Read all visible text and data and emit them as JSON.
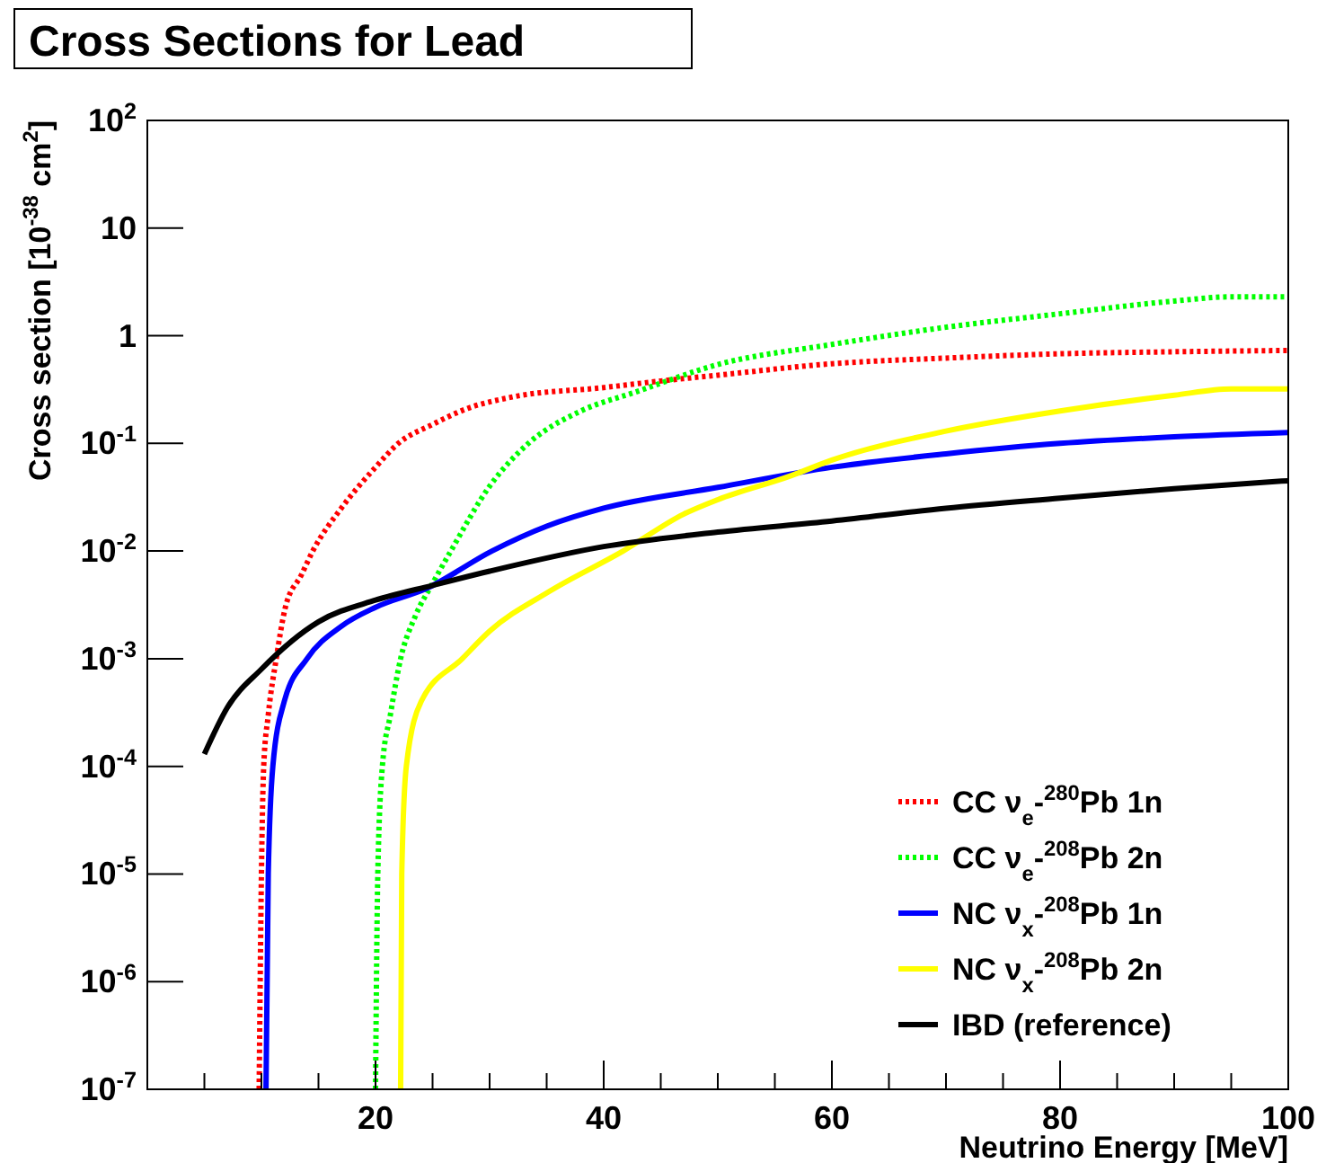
{
  "chart_data": {
    "type": "line",
    "title": "Cross Sections for Lead",
    "xlabel": "Neutrino Energy [MeV]",
    "ylabel": "Cross section [10$^{-38}$ cm$^{2}$]",
    "log": "y",
    "legend": "bottom right",
    "xlim": [
      0,
      100
    ],
    "ylim": [
      1e-07,
      100
    ],
    "xticks": [
      {
        "value": 5,
        "label": null
      },
      {
        "value": 10,
        "label": null
      },
      {
        "value": 15,
        "label": null
      },
      20,
      {
        "value": 25,
        "label": null
      },
      {
        "value": 30,
        "label": null
      },
      {
        "value": 35,
        "label": null
      },
      40,
      {
        "value": 45,
        "label": null
      },
      {
        "value": 50,
        "label": null
      },
      {
        "value": 55,
        "label": null
      },
      60,
      {
        "value": 65,
        "label": null
      },
      {
        "value": 70,
        "label": null
      },
      {
        "value": 75,
        "label": null
      },
      80,
      {
        "value": 85,
        "label": null
      },
      {
        "value": 90,
        "label": null
      },
      {
        "value": 95,
        "label": null
      },
      100
    ],
    "yticks": [
      {
        "value": 1e-07,
        "label": "10$^{-7}$"
      },
      {
        "value": 1e-06,
        "label": "10$^{-6}$"
      },
      {
        "value": 1e-05,
        "label": "10$^{-5}$"
      },
      {
        "value": 0.0001,
        "label": "10$^{-4}$"
      },
      {
        "value": 0.001,
        "label": "10$^{-3}$"
      },
      {
        "value": 0.01,
        "label": "10$^{-2}$"
      },
      {
        "value": 0.1,
        "label": "10$^{-1}$"
      },
      1,
      10,
      {
        "value": 100,
        "label": "10$^{2}$"
      }
    ],
    "series": [
      {
        "name": "CC ν$_{e}$-$^{280}$Pb 1n",
        "color": "#ff0000",
        "line_style": "dotted",
        "x": [
          9.8,
          10,
          10.2,
          10.6,
          11.3,
          12.1,
          13.5,
          14.5,
          17,
          20,
          22,
          25,
          28,
          32,
          40,
          45,
          50,
          60,
          70,
          80,
          90,
          100
        ],
        "values": [
          1e-07,
          1e-05,
          0.0001,
          0.0003,
          0.001,
          0.003,
          0.006,
          0.01,
          0.025,
          0.06,
          0.1,
          0.15,
          0.21,
          0.27,
          0.33,
          0.38,
          0.43,
          0.55,
          0.62,
          0.68,
          0.71,
          0.73
        ]
      },
      {
        "name": "CC ν$_{e}$-$^{208}$Pb 2n",
        "color": "#00ff00",
        "line_style": "dotted",
        "x": [
          20,
          20.2,
          20.6,
          21.3,
          22.2,
          23.5,
          25,
          26.6,
          30,
          33.4,
          38,
          42.8,
          50,
          60,
          70,
          80,
          90,
          95,
          100
        ],
        "values": [
          1e-07,
          1e-05,
          0.0001,
          0.0003,
          0.001,
          0.0025,
          0.005,
          0.01,
          0.04,
          0.1,
          0.2,
          0.3,
          0.54,
          0.83,
          1.2,
          1.6,
          2.1,
          2.3,
          2.3
        ]
      },
      {
        "name": "NC ν$_{x}$-$^{208}$Pb 1n",
        "color": "#0000ff",
        "line_style": "solid",
        "x": [
          10.4,
          10.6,
          11,
          12,
          14,
          17,
          20,
          24.5,
          30.2,
          35,
          40,
          50,
          60,
          70,
          80,
          90,
          100
        ],
        "values": [
          1e-07,
          1e-05,
          0.0001,
          0.0004,
          0.001,
          0.002,
          0.003,
          0.0045,
          0.01,
          0.017,
          0.025,
          0.039,
          0.06,
          0.08,
          0.1,
          0.115,
          0.126
        ]
      },
      {
        "name": "NC ν$_{x}$-$^{208}$Pb 2n",
        "color": "#ffff00",
        "line_style": "solid",
        "x": [
          22.2,
          22.3,
          22.7,
          24,
          27.6,
          30,
          35.2,
          41.7,
          47,
          50,
          56.4,
          60,
          70,
          80,
          90,
          95,
          100
        ],
        "values": [
          1e-07,
          1e-05,
          0.0001,
          0.0004,
          0.001,
          0.0018,
          0.0042,
          0.01,
          0.022,
          0.03,
          0.05,
          0.07,
          0.13,
          0.2,
          0.28,
          0.32,
          0.32
        ]
      },
      {
        "name": "IBD (reference)",
        "color": "#000000",
        "line_style": "solid",
        "x": [
          5,
          7,
          10,
          15,
          20,
          25,
          30,
          40,
          50,
          60,
          70,
          80,
          90,
          100
        ],
        "values": [
          0.00013,
          0.00035,
          0.0008,
          0.0022,
          0.0035,
          0.0048,
          0.0065,
          0.011,
          0.015,
          0.019,
          0.025,
          0.031,
          0.038,
          0.045
        ]
      }
    ]
  }
}
